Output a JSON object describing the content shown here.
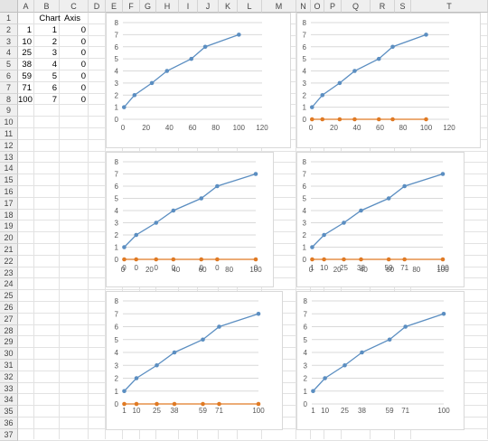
{
  "columns": [
    "A",
    "B",
    "C",
    "D",
    "E",
    "F",
    "G",
    "H",
    "I",
    "J",
    "K",
    "L",
    "M",
    "N",
    "O",
    "P",
    "Q",
    "R",
    "S",
    "T"
  ],
  "rows": [
    "1",
    "2",
    "3",
    "4",
    "5",
    "6",
    "7",
    "8",
    "9",
    "10",
    "11",
    "12",
    "13",
    "14",
    "15",
    "16",
    "17",
    "18",
    "19",
    "20",
    "21",
    "22",
    "23",
    "24",
    "25",
    "26",
    "27",
    "28",
    "29",
    "30",
    "31",
    "32",
    "33",
    "34",
    "35",
    "36",
    "37"
  ],
  "table": {
    "headers": [
      "Chart",
      "Axis"
    ],
    "rows": [
      [
        "1",
        "1",
        "0"
      ],
      [
        "10",
        "2",
        "0"
      ],
      [
        "25",
        "3",
        "0"
      ],
      [
        "38",
        "4",
        "0"
      ],
      [
        "59",
        "5",
        "0"
      ],
      [
        "71",
        "6",
        "0"
      ],
      [
        "100",
        "7",
        "0"
      ]
    ]
  },
  "colors": {
    "series_blue": "#5b8ec1",
    "series_orange": "#e07a24",
    "gridline": "#d9d9d9"
  },
  "charts_text": [
    {
      "y_ticks": [
        "0",
        "1",
        "2",
        "3",
        "4",
        "5",
        "6",
        "7",
        "8"
      ],
      "x_ticks": [
        "0",
        "20",
        "40",
        "60",
        "80",
        "100",
        "120"
      ]
    },
    {
      "y_ticks": [
        "0",
        "1",
        "2",
        "3",
        "4",
        "5",
        "6",
        "7",
        "8"
      ],
      "x_ticks": [
        "0",
        "20",
        "40",
        "60",
        "80",
        "100",
        "120"
      ]
    },
    {
      "y_ticks": [
        "0",
        "1",
        "2",
        "3",
        "4",
        "5",
        "6",
        "7",
        "8"
      ],
      "x_ticks": [
        "0",
        "20",
        "40",
        "60",
        "80",
        "100"
      ],
      "point_labels": [
        "0",
        "0",
        "0",
        "0",
        "0",
        "0",
        "0"
      ]
    },
    {
      "y_ticks": [
        "0",
        "1",
        "2",
        "3",
        "4",
        "5",
        "6",
        "7",
        "8"
      ],
      "x_ticks": [
        "0",
        "20",
        "40",
        "60",
        "80",
        "100"
      ],
      "point_labels": [
        "1",
        "10",
        "25",
        "38",
        "59",
        "71",
        "100"
      ]
    },
    {
      "y_ticks": [
        "0",
        "1",
        "2",
        "3",
        "4",
        "5",
        "6",
        "7",
        "8"
      ],
      "x_ticks": [],
      "point_labels": [
        "1",
        "10",
        "25",
        "38",
        "59",
        "71",
        "100"
      ]
    },
    {
      "y_ticks": [
        "0",
        "1",
        "2",
        "3",
        "4",
        "5",
        "6",
        "7",
        "8"
      ],
      "x_ticks": [],
      "point_labels": [
        "1",
        "10",
        "25",
        "38",
        "59",
        "71",
        "100"
      ]
    }
  ],
  "chart_data": [
    {
      "type": "scatter",
      "x": [
        1,
        10,
        25,
        38,
        59,
        71,
        100
      ],
      "series": [
        {
          "values": [
            1,
            2,
            3,
            4,
            5,
            6,
            7
          ]
        }
      ],
      "xlim": [
        0,
        120
      ],
      "ylim": [
        0,
        8
      ],
      "grid": true
    },
    {
      "type": "scatter",
      "x": [
        1,
        10,
        25,
        38,
        59,
        71,
        100
      ],
      "series": [
        {
          "values": [
            1,
            2,
            3,
            4,
            5,
            6,
            7
          ]
        },
        {
          "values": [
            0,
            0,
            0,
            0,
            0,
            0,
            0
          ]
        }
      ],
      "xlim": [
        0,
        120
      ],
      "ylim": [
        0,
        8
      ],
      "grid": true
    },
    {
      "type": "scatter",
      "x": [
        1,
        10,
        25,
        38,
        59,
        71,
        100
      ],
      "series": [
        {
          "values": [
            1,
            2,
            3,
            4,
            5,
            6,
            7
          ]
        },
        {
          "values": [
            0,
            0,
            0,
            0,
            0,
            0,
            0
          ]
        }
      ],
      "xlim": [
        0,
        100
      ],
      "ylim": [
        0,
        8
      ],
      "grid": true
    },
    {
      "type": "scatter",
      "x": [
        1,
        10,
        25,
        38,
        59,
        71,
        100
      ],
      "series": [
        {
          "values": [
            1,
            2,
            3,
            4,
            5,
            6,
            7
          ]
        },
        {
          "values": [
            0,
            0,
            0,
            0,
            0,
            0,
            0
          ]
        }
      ],
      "xlim": [
        0,
        100
      ],
      "ylim": [
        0,
        8
      ],
      "grid": true
    },
    {
      "type": "scatter",
      "x": [
        1,
        10,
        25,
        38,
        59,
        71,
        100
      ],
      "series": [
        {
          "values": [
            1,
            2,
            3,
            4,
            5,
            6,
            7
          ]
        },
        {
          "values": [
            0,
            0,
            0,
            0,
            0,
            0,
            0
          ]
        }
      ],
      "xlim": [
        0,
        100
      ],
      "ylim": [
        0,
        8
      ],
      "grid": true
    },
    {
      "type": "scatter",
      "x": [
        1,
        10,
        25,
        38,
        59,
        71,
        100
      ],
      "series": [
        {
          "values": [
            1,
            2,
            3,
            4,
            5,
            6,
            7
          ]
        }
      ],
      "xlim": [
        0,
        100
      ],
      "ylim": [
        0,
        8
      ],
      "grid": true
    }
  ]
}
